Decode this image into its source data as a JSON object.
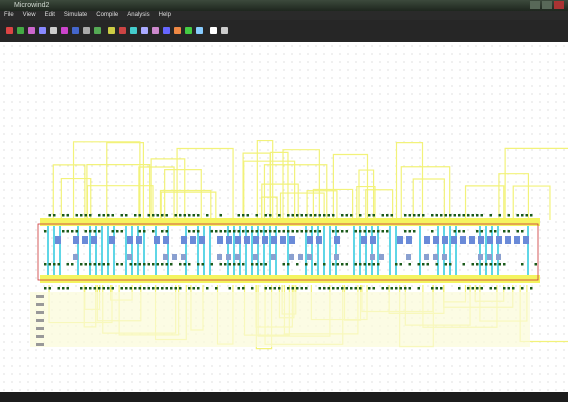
{
  "window": {
    "title": "Microwind2"
  },
  "menu": [
    "File",
    "View",
    "Edit",
    "Simulate",
    "Compile",
    "Analysis",
    "Help"
  ]
}
